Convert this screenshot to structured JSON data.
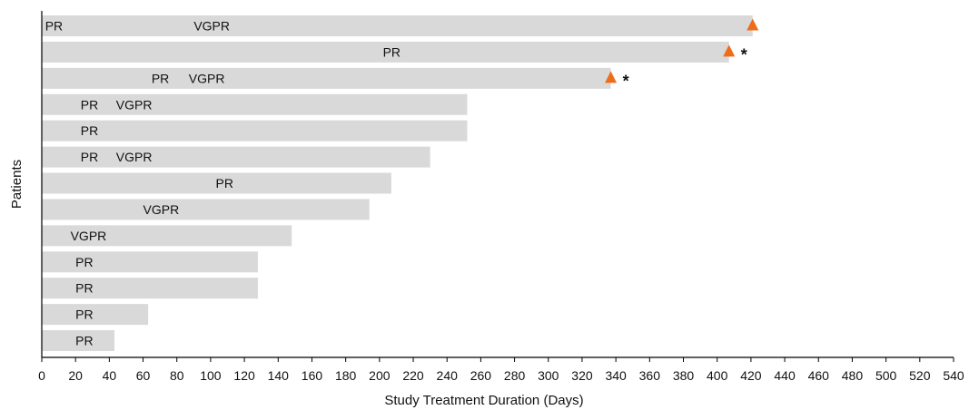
{
  "chart_data": {
    "type": "bar",
    "orientation": "horizontal",
    "xlabel": "Study Treatment Duration (Days)",
    "ylabel": "Patients",
    "xlim": [
      0,
      540
    ],
    "xticks": [
      0,
      20,
      40,
      60,
      80,
      100,
      120,
      140,
      160,
      180,
      200,
      220,
      240,
      260,
      280,
      300,
      320,
      340,
      360,
      380,
      400,
      420,
      440,
      460,
      480,
      500,
      520,
      540
    ],
    "grid": false,
    "colors": {
      "bar": "#d9d9d9",
      "marker": "#ef6c1a",
      "axis": "#000000"
    },
    "bars": [
      {
        "duration": 421,
        "responses": [
          {
            "label": "PR",
            "day": 2
          },
          {
            "label": "VGPR",
            "day": 90
          }
        ],
        "marker": true,
        "asterisk": false
      },
      {
        "duration": 407,
        "responses": [
          {
            "label": "PR",
            "day": 202
          }
        ],
        "marker": true,
        "asterisk": true
      },
      {
        "duration": 337,
        "responses": [
          {
            "label": "PR",
            "day": 65
          },
          {
            "label": "VGPR",
            "day": 87
          }
        ],
        "marker": true,
        "asterisk": true
      },
      {
        "duration": 252,
        "responses": [
          {
            "label": "PR",
            "day": 23
          },
          {
            "label": "VGPR",
            "day": 44
          }
        ],
        "marker": false,
        "asterisk": false
      },
      {
        "duration": 252,
        "responses": [
          {
            "label": "PR",
            "day": 23
          }
        ],
        "marker": false,
        "asterisk": false
      },
      {
        "duration": 230,
        "responses": [
          {
            "label": "PR",
            "day": 23
          },
          {
            "label": "VGPR",
            "day": 44
          }
        ],
        "marker": false,
        "asterisk": false
      },
      {
        "duration": 207,
        "responses": [
          {
            "label": "PR",
            "day": 103
          }
        ],
        "marker": false,
        "asterisk": false
      },
      {
        "duration": 194,
        "responses": [
          {
            "label": "VGPR",
            "day": 60
          }
        ],
        "marker": false,
        "asterisk": false
      },
      {
        "duration": 148,
        "responses": [
          {
            "label": "VGPR",
            "day": 17
          }
        ],
        "marker": false,
        "asterisk": false
      },
      {
        "duration": 128,
        "responses": [
          {
            "label": "PR",
            "day": 20
          }
        ],
        "marker": false,
        "asterisk": false
      },
      {
        "duration": 128,
        "responses": [
          {
            "label": "PR",
            "day": 20
          }
        ],
        "marker": false,
        "asterisk": false
      },
      {
        "duration": 63,
        "responses": [
          {
            "label": "PR",
            "day": 20
          }
        ],
        "marker": false,
        "asterisk": false
      },
      {
        "duration": 43,
        "responses": [
          {
            "label": "PR",
            "day": 20
          }
        ],
        "marker": false,
        "asterisk": false
      }
    ],
    "asterisk_symbol": "*"
  }
}
